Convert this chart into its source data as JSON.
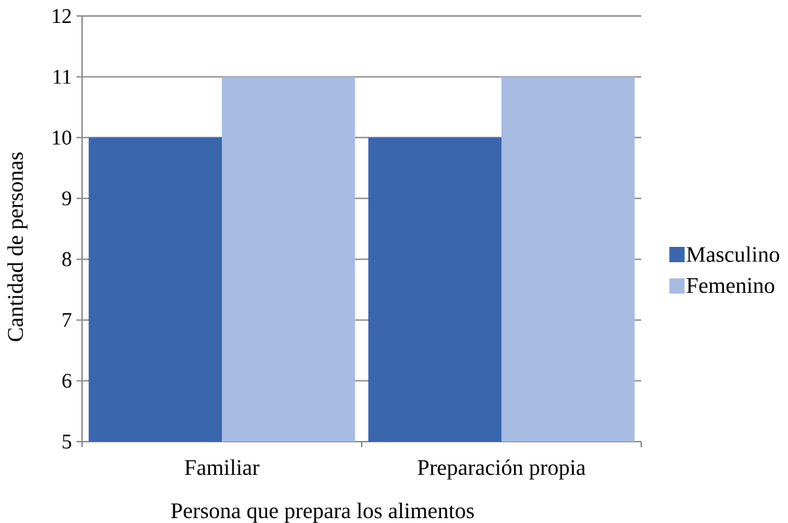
{
  "chart_data": {
    "type": "bar",
    "xlabel": "Persona que prepara los alimentos",
    "ylabel": "Cantidad de personas",
    "categories": [
      "Familiar",
      "Preparación propia"
    ],
    "series": [
      {
        "name": "Masculino",
        "color": "#3a66ae",
        "values": [
          10,
          10
        ]
      },
      {
        "name": "Femenino",
        "color": "#a7bbe2",
        "values": [
          11,
          11
        ]
      }
    ],
    "ylim": [
      5,
      12
    ],
    "yticks": [
      5,
      6,
      7,
      8,
      9,
      10,
      11,
      12
    ],
    "grid": "y",
    "legend": "right"
  }
}
